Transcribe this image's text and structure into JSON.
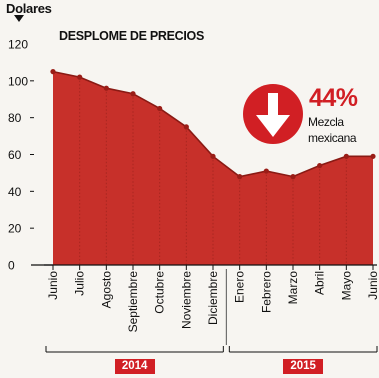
{
  "chart_data": {
    "type": "area",
    "ylabel": "Dolares",
    "title": "DESPLOME DE PRECIOS",
    "ylim": [
      0,
      120
    ],
    "yticks": [
      0,
      20,
      40,
      60,
      80,
      100,
      120
    ],
    "categories": [
      "Junio",
      "Julio",
      "Agosto",
      "Septiembre",
      "Octubre",
      "Noviembre",
      "Diciembre",
      "Enero",
      "Febrero",
      "Marzo",
      "Abril",
      "Mayo",
      "Junio"
    ],
    "values": [
      105,
      102,
      96,
      93,
      85,
      75,
      59,
      48,
      51,
      48,
      54,
      59,
      59
    ],
    "year_groups": [
      {
        "label": "2014",
        "count": 7
      },
      {
        "label": "2015",
        "count": 6
      }
    ],
    "annotation": {
      "value": "44%",
      "line1": "Mezcla",
      "line2": "mexicana"
    },
    "fill_color": "#c7302a",
    "line_color": "#8a1a14",
    "accent_color": "#d11f24",
    "grid": false
  }
}
